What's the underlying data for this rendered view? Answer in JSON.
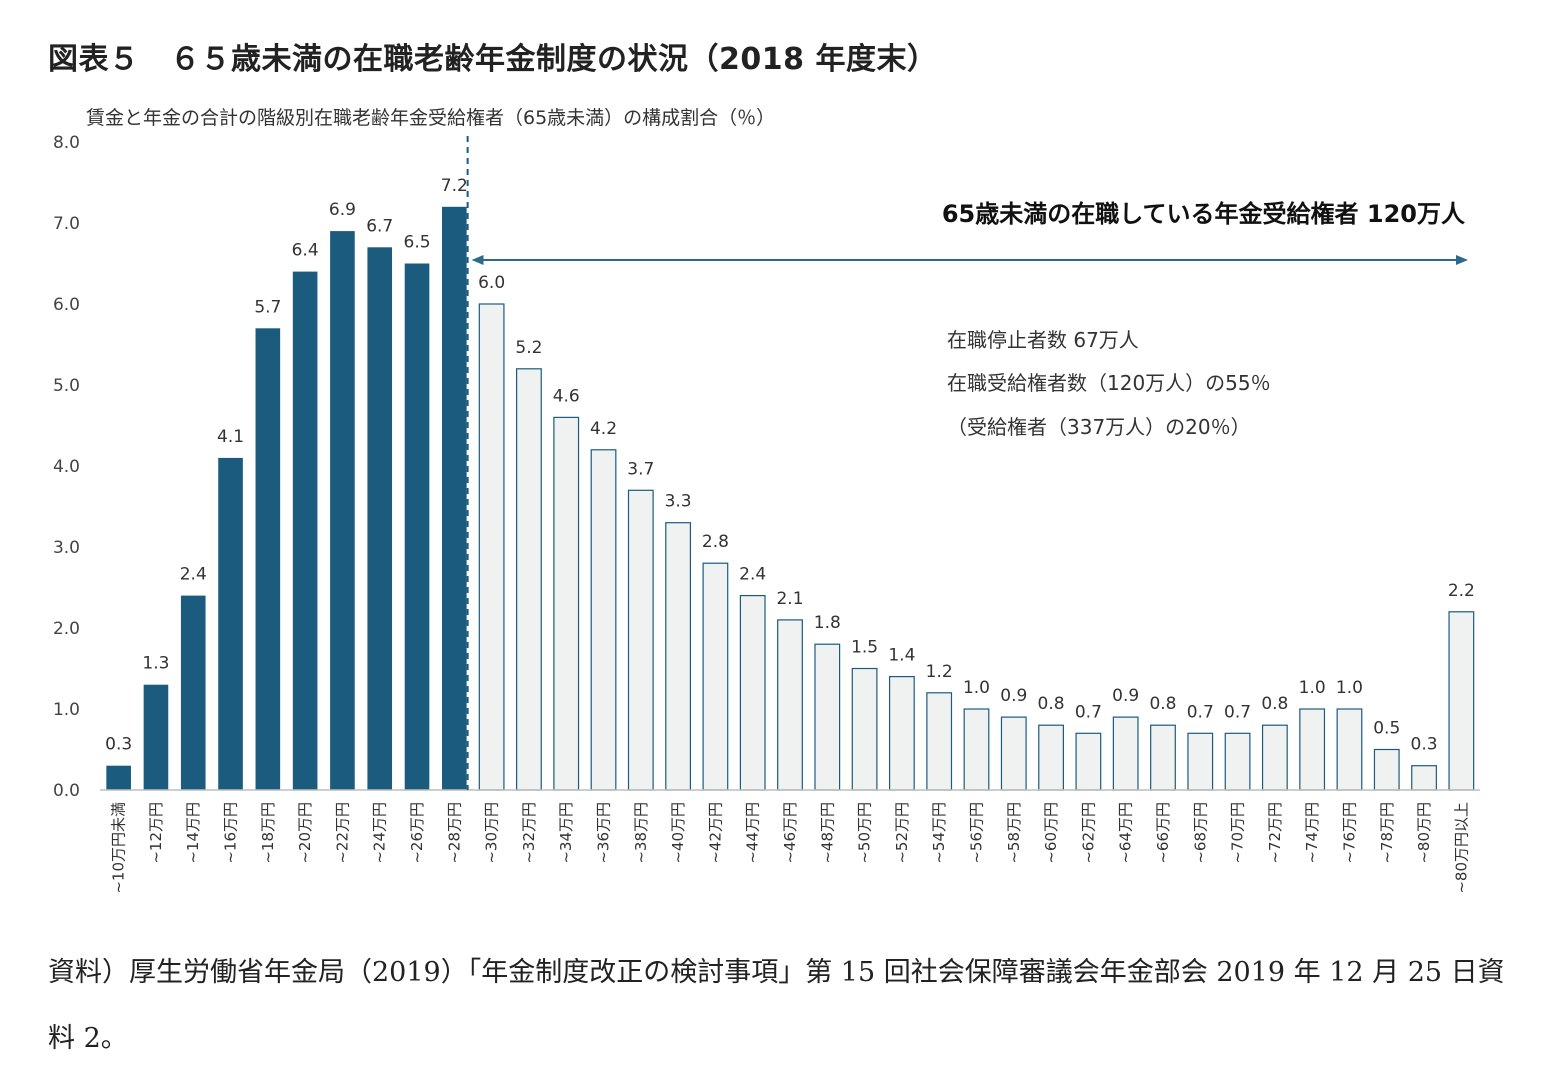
{
  "figure_title": "図表５　６５歳未満の在職老齢年金制度の状況（2018 年度末）",
  "source_note": "資料）厚生労働省年金局（2019）「年金制度改正の検討事項」第 15 回社会保障審議会年金部会 2019 年 12 月 25 日資料 2。",
  "chart_data": {
    "type": "bar",
    "title": "賃金と年金の合計の階級別在職老齢年金受給権者（65歳未満）の構成割合（％）",
    "ylim": [
      0,
      8
    ],
    "yticks": [
      "0.0",
      "1.0",
      "2.0",
      "3.0",
      "4.0",
      "5.0",
      "6.0",
      "7.0",
      "8.0"
    ],
    "grid": false,
    "categories": [
      "~10万円未満",
      "~12万円",
      "~14万円",
      "~16万円",
      "~18万円",
      "~20万円",
      "~22万円",
      "~24万円",
      "~26万円",
      "~28万円",
      "~30万円",
      "~32万円",
      "~34万円",
      "~36万円",
      "~38万円",
      "~40万円",
      "~42万円",
      "~44万円",
      "~46万円",
      "~48万円",
      "~50万円",
      "~52万円",
      "~54万円",
      "~56万円",
      "~58万円",
      "~60万円",
      "~62万円",
      "~64万円",
      "~66万円",
      "~68万円",
      "~70万円",
      "~72万円",
      "~74万円",
      "~76万円",
      "~78万円",
      "~80万円",
      "~80万円以上"
    ],
    "values": [
      0.3,
      1.3,
      2.4,
      4.1,
      5.7,
      6.4,
      6.9,
      6.7,
      6.5,
      7.2,
      6.0,
      5.2,
      4.6,
      4.2,
      3.7,
      3.3,
      2.8,
      2.4,
      2.1,
      1.8,
      1.5,
      1.4,
      1.2,
      1.0,
      0.9,
      0.8,
      0.7,
      0.9,
      0.8,
      0.7,
      0.7,
      0.8,
      1.0,
      1.0,
      0.5,
      0.3,
      2.2
    ],
    "value_labels": [
      "0.3",
      "1.3",
      "2.4",
      "4.1",
      "5.7",
      "6.4",
      "6.9",
      "6.7",
      "6.5",
      "7.2",
      "6.0",
      "5.2",
      "4.6",
      "4.2",
      "3.7",
      "3.3",
      "2.8",
      "2.4",
      "2.1",
      "1.8",
      "1.5",
      "1.4",
      "1.2",
      "1.0",
      "0.9",
      "0.8",
      "0.7",
      "0.9",
      "0.8",
      "0.7",
      "0.7",
      "0.8",
      "1.0",
      "1.0",
      "0.5",
      "0.3",
      "2.2"
    ],
    "dark_bar_count": 10,
    "colors": {
      "dark": "#1a5b7e",
      "light_fill": "#f0f2f2",
      "light_stroke": "#1a5b7e",
      "arrow": "#2c6a8a"
    },
    "annotations": {
      "headline": "65歳未満の在職している年金受給権者  120万人",
      "note_lines": [
        "在職停止者数 67万人",
        "在職受給権者数（120万人）の55％",
        "（受給権者（337万人）の20％）"
      ]
    }
  }
}
